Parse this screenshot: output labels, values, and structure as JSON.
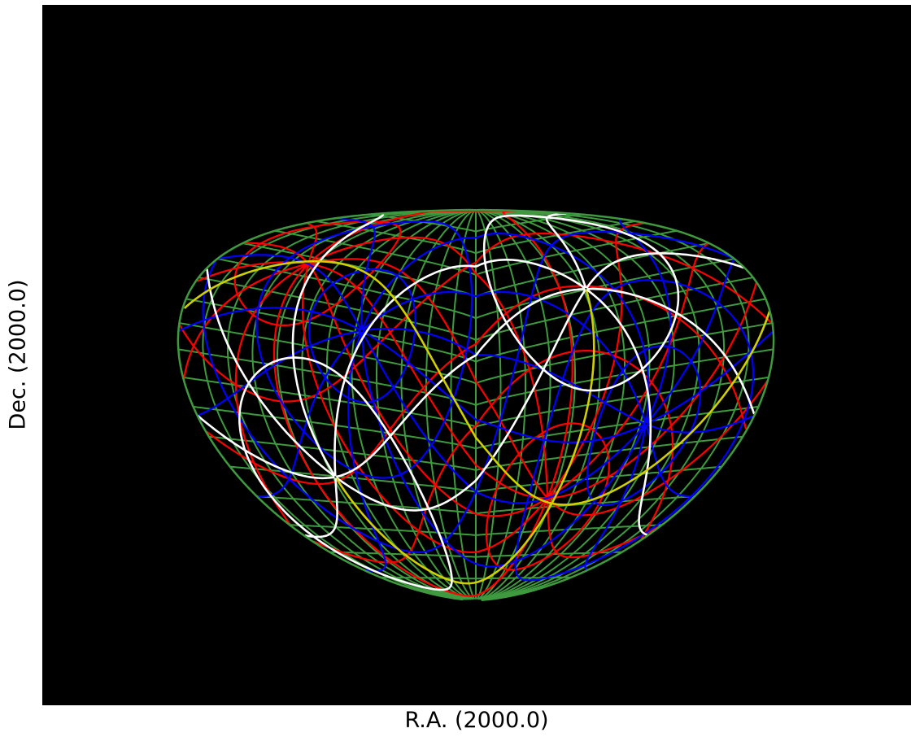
{
  "plot": {
    "xlabel": "R.A. (2000.0)",
    "ylabel": "Dec. (2000.0)"
  },
  "grid_colors": {
    "background": "#000000",
    "equatorial": "#3f9a3f",
    "galactic": "#0000ff",
    "ecliptic": "#ff0000",
    "supergalactic": "#ffffff",
    "highlight": "#d0d000"
  }
}
